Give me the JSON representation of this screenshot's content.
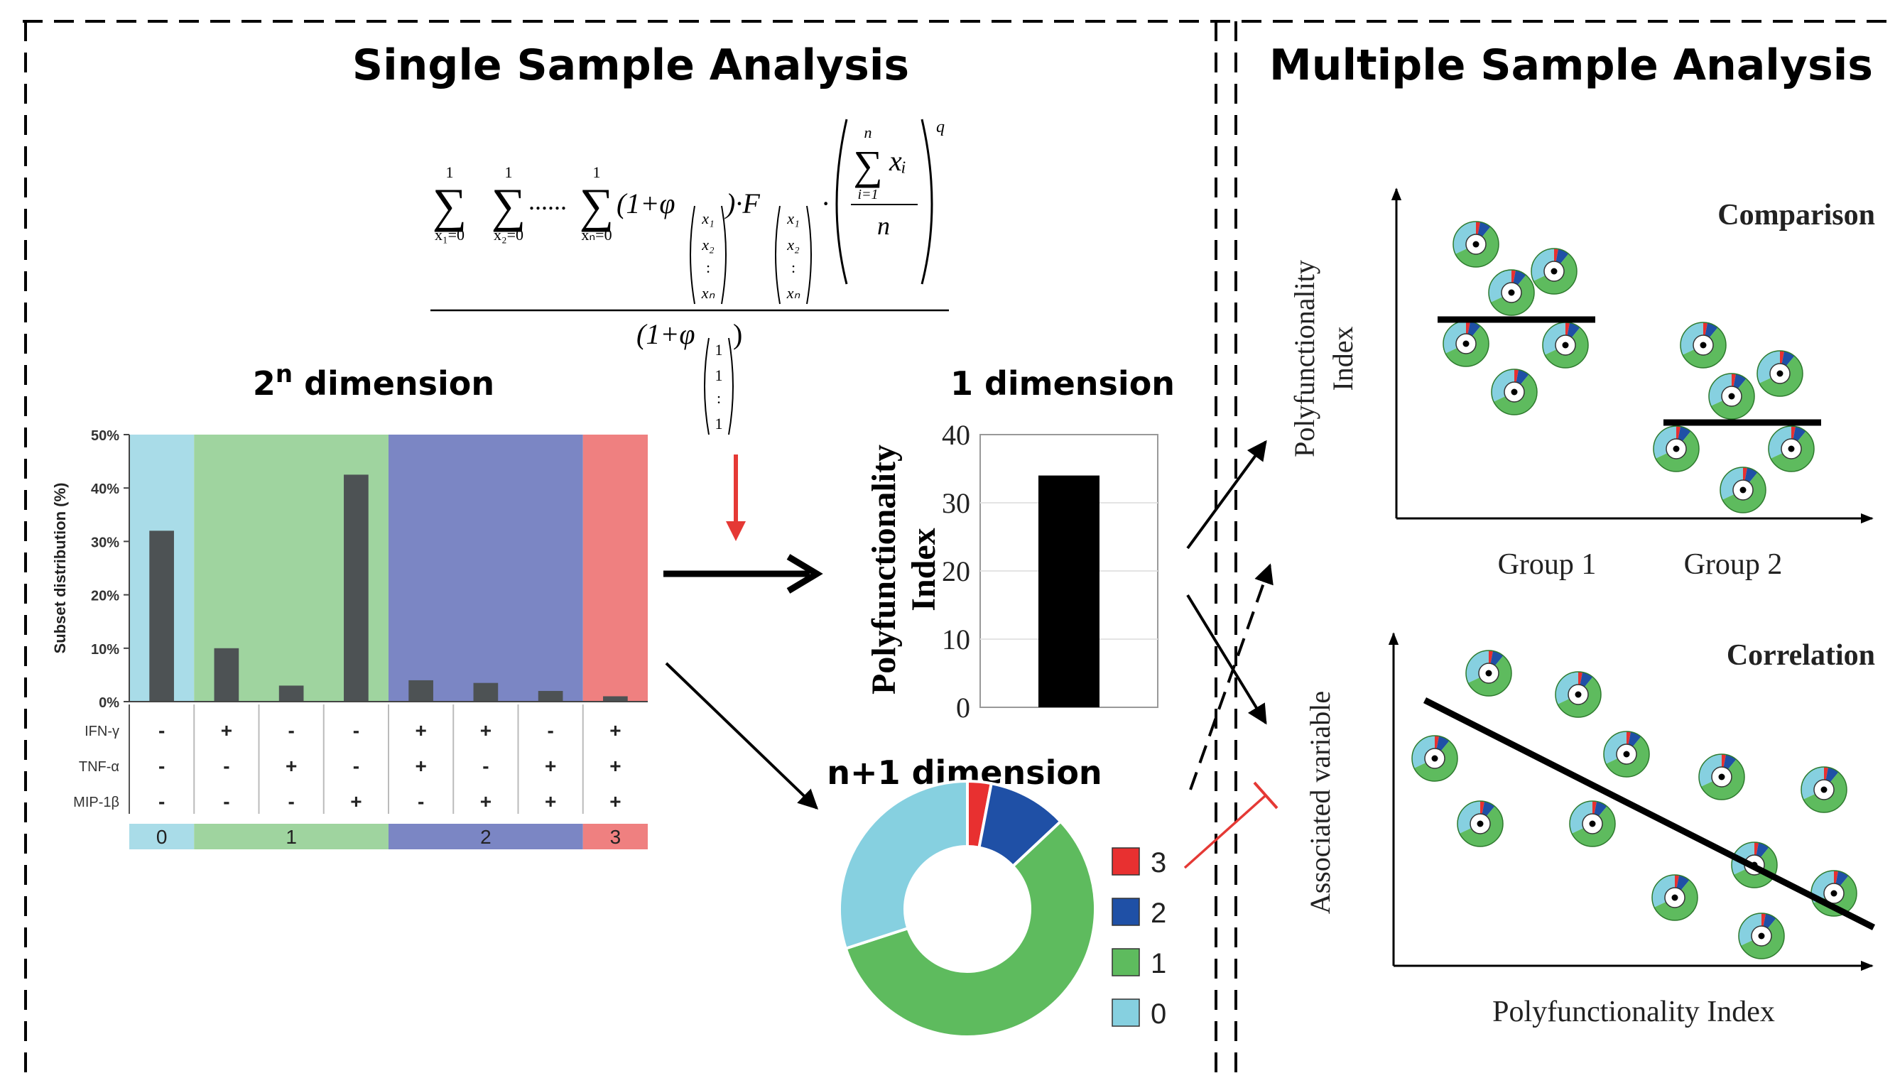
{
  "panels": {
    "single_title": "Single Sample Analysis",
    "multiple_title": "Multiple Sample Analysis"
  },
  "formula": {
    "sum_top": "1",
    "sum_top_n": "n",
    "sub_x1": "x₁=0",
    "sub_x2": "x₂=0",
    "sub_xn": "xₙ=0",
    "dots": "......",
    "one_plus_phi": "(1+φ",
    "close_dot_F": ")·F",
    "dot": "·",
    "xi": "xᵢ",
    "i_eq_1": "i=1",
    "n": "n",
    "q": "q",
    "vec_x1": "x₁",
    "vec_x2": "x₂",
    "vec_colon": ":",
    "vec_xn": "xₙ",
    "denominator": "(1+φ",
    "den_close": ")",
    "den_vec_1": "1",
    "den_vec_colon": ":"
  },
  "labels": {
    "dim_2n_base": "2",
    "dim_2n_sup": "n",
    "dim_2n_rest": " dimension",
    "dim_1": "1 dimension",
    "dim_n1": "n+1 dimension"
  },
  "colors": {
    "cat0": "#a9dce8",
    "cat1": "#9fd49f",
    "cat2": "#7b86c4",
    "cat3": "#ef8080",
    "bar": "#4d5254",
    "donut0": "#86d0e0",
    "donut1": "#5ebb5e",
    "donut2": "#1f50a6",
    "donut3": "#e83030",
    "red_arrow": "#e53935"
  },
  "chart_data": [
    {
      "id": "subset_distribution",
      "type": "bar",
      "ylabel": "Subset distribution (%)",
      "ylim": [
        0,
        50
      ],
      "yticks": [
        "0%",
        "10%",
        "20%",
        "30%",
        "40%",
        "50%"
      ],
      "values": [
        32,
        10,
        3,
        42.5,
        4,
        3.5,
        2,
        1
      ],
      "category_groups": [
        0,
        1,
        1,
        1,
        2,
        2,
        2,
        3
      ],
      "markers": [
        "IFN-γ",
        "TNF-α",
        "MIP-1β"
      ],
      "signs": [
        [
          "-",
          "+",
          "-",
          "-",
          "+",
          "+",
          "-",
          "+"
        ],
        [
          "-",
          "-",
          "+",
          "-",
          "+",
          "-",
          "+",
          "+"
        ],
        [
          "-",
          "-",
          "-",
          "+",
          "-",
          "+",
          "+",
          "+"
        ]
      ],
      "group_labels": [
        "0",
        "1",
        "2",
        "3"
      ]
    },
    {
      "id": "polyfunctionality_bar",
      "type": "bar",
      "ylabel": "Polyfunctionality Index",
      "ylim": [
        0,
        40
      ],
      "yticks": [
        "0",
        "10",
        "20",
        "30",
        "40"
      ],
      "values": [
        34
      ]
    },
    {
      "id": "pie",
      "type": "pie",
      "categories": [
        "3",
        "2",
        "1",
        "0"
      ],
      "values": [
        3,
        10,
        57,
        30
      ]
    },
    {
      "id": "comparison",
      "type": "scatter",
      "title": "Comparison",
      "ylabel": "Polyfunctionality Index",
      "categories": [
        "Group 1",
        "Group 2"
      ]
    },
    {
      "id": "correlation",
      "type": "scatter",
      "title": "Correlation",
      "xlabel": "Polyfunctionality Index",
      "ylabel": "Associated variable"
    }
  ]
}
